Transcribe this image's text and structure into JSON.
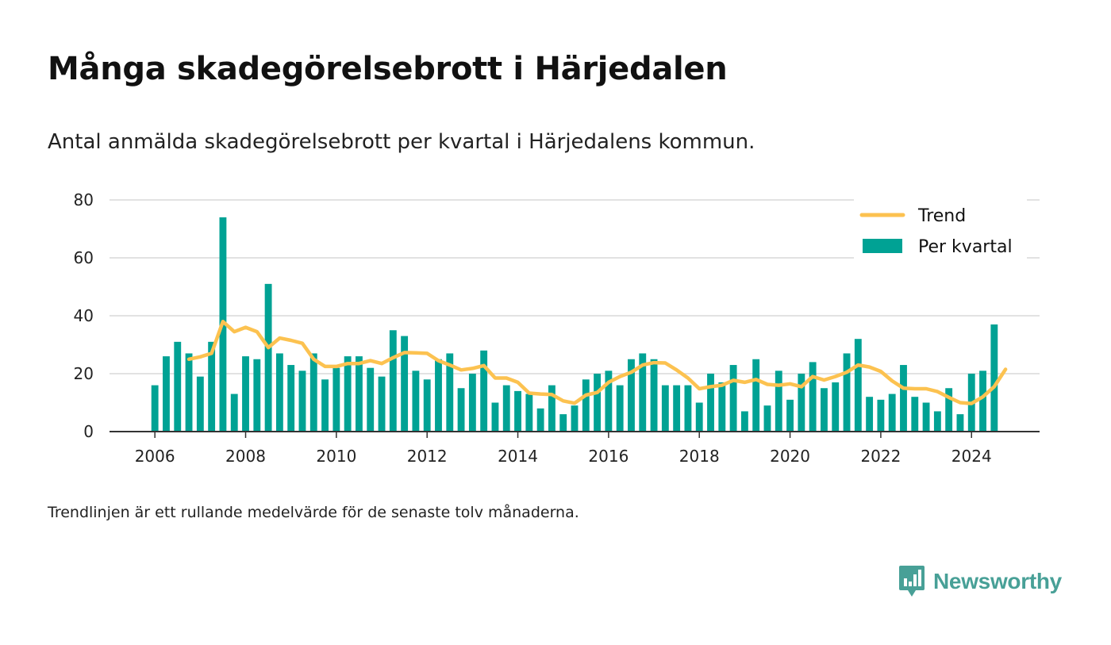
{
  "header": {
    "title": "Många skadegörelsebrott i Härjedalen",
    "subtitle": "Antal anmälda skadegörelsebrott per kvartal i Härjedalens kommun."
  },
  "footnote": "Trendlinjen är ett rullande medelvärde för de senaste tolv månaderna.",
  "brand": {
    "name": "Newsworthy",
    "color": "#48a097",
    "icon": "newsworthy-logo-icon"
  },
  "colors": {
    "bar": "#00a294",
    "trend": "#fcc250",
    "grid": "#d9d9d9",
    "axis": "#333333"
  },
  "chart_data": {
    "type": "bar",
    "x_unit": "year (quarterly)",
    "xlim": [
      2005,
      2025.5
    ],
    "ylim": [
      0,
      80
    ],
    "xticks": [
      2006,
      2008,
      2010,
      2012,
      2014,
      2016,
      2018,
      2020,
      2022,
      2024
    ],
    "yticks": [
      0,
      20,
      40,
      60,
      80
    ],
    "grid": true,
    "legend_position": "top-right",
    "series": [
      {
        "name": "Per kvartal",
        "type": "bar",
        "start": 2006.0,
        "step": 0.25,
        "values": [
          16,
          26,
          31,
          27,
          19,
          31,
          74,
          13,
          26,
          25,
          51,
          27,
          23,
          21,
          27,
          18,
          22,
          26,
          26,
          22,
          19,
          35,
          33,
          21,
          18,
          25,
          27,
          15,
          20,
          28,
          10,
          16,
          14,
          13,
          8,
          16,
          6,
          9,
          18,
          20,
          21,
          16,
          25,
          27,
          25,
          16,
          16,
          16,
          10,
          20,
          17,
          23,
          7,
          25,
          9,
          21,
          11,
          20,
          24,
          15,
          17,
          27,
          32,
          12,
          11,
          13,
          23,
          12,
          10,
          7,
          15,
          6,
          20,
          21,
          37
        ]
      },
      {
        "name": "Trend",
        "type": "line",
        "start": 2006.75,
        "step": 0.25,
        "values": [
          25,
          25.8,
          27,
          38,
          34.5,
          36,
          34.5,
          29,
          32.3,
          31.5,
          30.5,
          25,
          22.5,
          22.5,
          23.5,
          23.5,
          24.5,
          23.5,
          25.5,
          27.3,
          27.2,
          27,
          24.5,
          23,
          21.3,
          21.8,
          22.8,
          18.5,
          18.5,
          17,
          13.3,
          13,
          12.8,
          10.6,
          9.8,
          12.6,
          13.5,
          17,
          19,
          20.5,
          23,
          23.8,
          23.7,
          21.3,
          18.5,
          14.8,
          15.5,
          16,
          17.7,
          17,
          18,
          16.3,
          16,
          16.5,
          15.5,
          19,
          17.8,
          19,
          20.5,
          23,
          22.3,
          20.8,
          17.5,
          15,
          14.8,
          14.8,
          13.8,
          11.8,
          10,
          9.7,
          12,
          15.5,
          21.5
        ]
      }
    ]
  }
}
